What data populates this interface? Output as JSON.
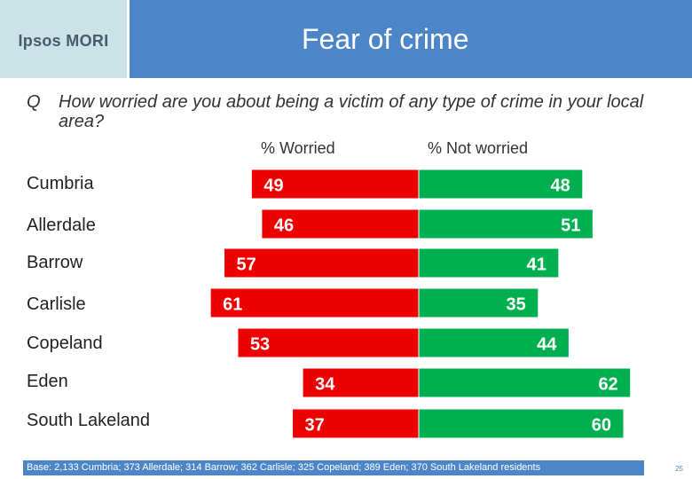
{
  "header": {
    "logo": "Ipsos MORI",
    "title": "Fear of crime"
  },
  "question": {
    "mark": "Q",
    "text": "How worried are you about being a victim of any type of crime in your local area?"
  },
  "colors": {
    "worried": "#ee0000",
    "not_worried": "#00b050",
    "title_bar": "#4c86c8",
    "logo_bg": "#c9e3e6"
  },
  "chart_data": {
    "type": "bar",
    "orientation": "horizontal-diverging",
    "categories": [
      "Cumbria",
      "Allerdale",
      "Barrow",
      "Carlisle",
      "Copeland",
      "Eden",
      "South Lakeland"
    ],
    "series": [
      {
        "name": "% Worried",
        "values": [
          49,
          46,
          57,
          61,
          53,
          34,
          37
        ]
      },
      {
        "name": "% Not worried",
        "values": [
          48,
          51,
          41,
          35,
          44,
          62,
          60
        ]
      }
    ],
    "title": "Fear of crime",
    "xlabel": "",
    "ylabel": "",
    "unit": "%"
  },
  "footnote": "Base: 2,133 Cumbria; 373 Allerdale; 314 Barrow; 362 Carlisle; 325 Copeland; 389 Eden; 370 South Lakeland residents",
  "page_number": "25"
}
